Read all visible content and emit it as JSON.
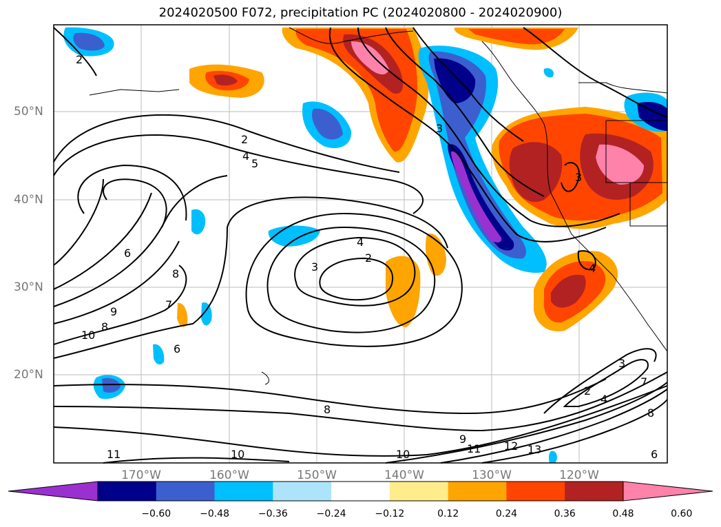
{
  "title": "2024020500 F072, precipitation PC (2024020800 - 2024020900)",
  "lat_labels": [
    "50°N",
    "40°N",
    "30°N",
    "20°N"
  ],
  "lon_labels": [
    "170°W",
    "160°W",
    "150°W",
    "140°W",
    "130°W",
    "120°W"
  ],
  "colorbar": {
    "ticks": [
      "−0.60",
      "−0.48",
      "−0.36",
      "−0.24",
      "−0.12",
      "0.12",
      "0.24",
      "0.36",
      "0.48",
      "0.60"
    ],
    "colors": [
      "#9b30d0",
      "#00008b",
      "#3c5fd0",
      "#00bfff",
      "#aee4fb",
      "#ffffff",
      "#ffec8b",
      "#ffa500",
      "#ff4500",
      "#b22222",
      "#ff82ab"
    ]
  },
  "contour_labels": [
    "2",
    "2",
    "4",
    "5",
    "3",
    "6",
    "8",
    "9",
    "10",
    "8",
    "7",
    "6",
    "4",
    "2",
    "3",
    "8",
    "10",
    "10",
    "11",
    "12",
    "13",
    "9",
    "11",
    "3",
    "2",
    "3",
    "4",
    "7",
    "8",
    "6",
    "4"
  ]
}
